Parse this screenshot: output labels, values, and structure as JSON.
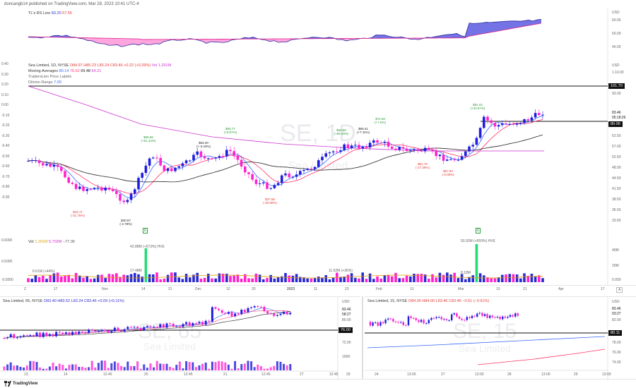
{
  "header": {
    "publisher": "duncangb14 published on TradingView.com, Mar 28, 2023 10:41 UTC-4"
  },
  "rs_pane": {
    "label": "TL&#039;s RS Line",
    "val1": "83.20",
    "val2": "57.55",
    "axis_unit": "USD",
    "axis_ticks": [
      "60.00",
      "50.00",
      "40.00"
    ],
    "fill_color": "#4b4bd6",
    "neg_fill_color": "#ff66cc"
  },
  "main_pane": {
    "symbol_line": "Sea Limited, 1D, NYSE",
    "ohlc": {
      "o": "O84.97",
      "h": "H85.23",
      "l": "L83.24",
      "c": "C83.46",
      "chg": "+0.22 (+0.26%)",
      "vol": "Vol 1.291M"
    },
    "ma_label": "Moving Averages",
    "ma_values": [
      "80.14",
      "76.62",
      "69.48",
      "64.21"
    ],
    "ma_colors": [
      "#3366ff",
      "#ff3366",
      "#222222",
      "#cc33cc"
    ],
    "pivot_label": "TradersLion Price Labels",
    "pivot2_label": "Ditvion Range",
    "pivot2_val": "7.00",
    "axis_unit": "USD",
    "left_ticks": [
      "0.40",
      "0.30",
      "0.20",
      "0.10",
      "0.00",
      "-0.10",
      "-0.20",
      "-0.30",
      "-0.40",
      "-0.50",
      "-0.60",
      "-0.70",
      "-0.80",
      "-0.90"
    ],
    "right_ticks": [
      "1.10.00",
      "1.00.00",
      "93.00",
      "83.00",
      "75.00",
      "68.50",
      "62.50",
      "57.00",
      "52.50",
      "48.00",
      "44.50",
      "41.50",
      "38.50",
      "36.50",
      "33.50"
    ],
    "hline_top": "101.70",
    "hline_mid": "80.06",
    "last_price": "83.46",
    "countdown": "05:18:26",
    "watermark": "SE, 1D",
    "watermark2": "Sea Limited",
    "annotations": [
      {
        "t1": "$42.71",
        "t2": "(-31.75%)",
        "color": "#e53935"
      },
      {
        "t1": "$40.67",
        "t2": "(-4.78%)",
        "color": "#222"
      },
      {
        "t1": "$65.66",
        "t2": "(+61.44%)",
        "color": "#2e9e3e"
      },
      {
        "t1": "$63.40",
        "t2": "(+-3.43%)",
        "color": "#222"
      },
      {
        "t1": "$69.77",
        "t2": "(+9.87%)",
        "color": "#2e9e3e"
      },
      {
        "t1": "$37.58",
        "t2": "(-30.80%)",
        "color": "#e53935"
      },
      {
        "t1": "$69.86",
        "t2": "(+69.29%)",
        "color": "#2e9e3e"
      },
      {
        "t1": "$69.41",
        "t2": "(+7.11%)",
        "color": "#222"
      },
      {
        "t1": "$74.68",
        "t2": "(+7.6%)",
        "color": "#2e9e3e"
      },
      {
        "t1": "$61.70",
        "t2": "(-17.38%)",
        "color": "#e53935"
      },
      {
        "t1": "$57.93",
        "t2": "(-6.08%)",
        "color": "#e53935"
      },
      {
        "t1": "$81.02",
        "t2": "(+40.87%)",
        "color": "#2e9e3e"
      }
    ]
  },
  "volume_pane": {
    "label": "Vol",
    "v1": "1.291M",
    "v2": "5.702M",
    "v3": "−77.36",
    "left_ticks": [
      "0.6000",
      "0.5000",
      "-0.5000"
    ],
    "right_ticks": [
      "40M",
      "20M",
      "0.000"
    ],
    "annots": [
      "8.61M (+44%)",
      "42.88M (+573%) HVE",
      "17.48M",
      "11.62M (+36%)",
      "50.92M (+659%) HVE",
      "8.18M"
    ],
    "earnings_marker": "E"
  },
  "time_axis": {
    "labels": [
      "Z",
      "17",
      "Nov",
      "14",
      "21",
      "Dec",
      "12",
      "20",
      "2023",
      "11",
      "23",
      "Feb",
      "13",
      "Mar",
      "13",
      "21",
      "Apr",
      "17"
    ],
    "end_icon": "A"
  },
  "pane_65": {
    "symbol_line": "Sea Limited, 65, NYSE",
    "ohlc": "O83.40 H83.52 L83.24 C83.46 +0.09 (+0.11%)",
    "axis_unit": "USD",
    "price1": "83.46",
    "price2": "58:27",
    "price3": "80.00",
    "hline": "76.00",
    "tick_low": "72.00",
    "vol_tick": "100K",
    "watermark": "SE, 65",
    "watermark2": "Sea Limited",
    "time_labels": [
      "13",
      "14",
      "12:45",
      "20",
      "12:45",
      "21",
      "12:45",
      "27",
      "12:45",
      "29"
    ]
  },
  "pane_15": {
    "symbol_line": "Sea Limited, 15, NYSE",
    "ohlc": "O84.00 H84.00 L83.46 C83.46 −0.51 (−0.61%)",
    "axis_unit": "USD",
    "price1": "83.46",
    "price2": "03:27",
    "tick": "82.00",
    "hline": "80.11",
    "ticks_low": [
      "78.00",
      "76.00",
      "74.00"
    ],
    "watermark": "SE, 15",
    "watermark2": "Sea Limited",
    "time_labels": [
      "24",
      "13:00",
      "27",
      "13:00",
      "28",
      "13:00",
      "29",
      "13:00"
    ]
  },
  "footer": {
    "brand": "TradingView"
  }
}
